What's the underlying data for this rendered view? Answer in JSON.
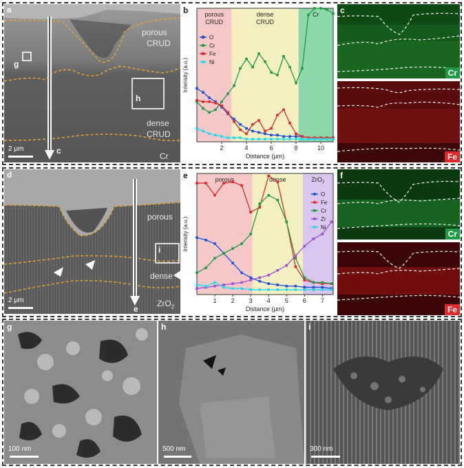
{
  "panels": {
    "a": {
      "letter": "a",
      "labels": {
        "porous": "porous",
        "crud1": "CRUD",
        "dense": "dense",
        "crud2": "CRUD",
        "cr": "Cr",
        "g": "g",
        "h": "h",
        "c": "c"
      },
      "scale": "2 μm"
    },
    "b": {
      "letter": "b",
      "regions": {
        "porous": "porous",
        "porous2": "CRUD",
        "dense": "dense",
        "dense2": "CRUD",
        "cr": "Cr"
      }
    },
    "c": {
      "letter": "c",
      "top_element": "Cr",
      "bottom_element": "Fe"
    },
    "d": {
      "letter": "d",
      "labels": {
        "porous": "porous",
        "dense": "dense",
        "zro2": "ZrO",
        "zro2_sub": "2",
        "i": "i",
        "e": "e"
      },
      "scale": "2 μm"
    },
    "e": {
      "letter": "e",
      "regions": {
        "porous": "porous",
        "dense": "dense",
        "zro2": "ZrO",
        "zro2_sub": "2"
      }
    },
    "f": {
      "letter": "f",
      "top_element": "Cr",
      "bottom_element": "Fe"
    },
    "g": {
      "letter": "g",
      "scale": "100 nm"
    },
    "h": {
      "letter": "h",
      "scale": "500 nm"
    },
    "i": {
      "letter": "i",
      "scale": "300 nm"
    }
  },
  "colors": {
    "O": "#1f4fd6",
    "Cr": "#1f9a46",
    "Fe": "#e0282a",
    "Ni": "#27d8ea",
    "Zr": "#9a4fd6",
    "porous_bg": "#f6c8c8",
    "dense_bg": "#f5f0c2",
    "cr_bg": "#8ed7a8",
    "zro2_bg": "#d9c5ee"
  },
  "chart_data": [
    {
      "type": "line",
      "panel": "b",
      "xlabel": "Distance (μm)",
      "ylabel": "Intensity (a.u.)",
      "xlim": [
        0,
        11
      ],
      "ylim": [
        0,
        1
      ],
      "xticks": [
        2,
        4,
        6,
        8,
        10
      ],
      "regions": [
        {
          "name": "porous CRUD",
          "from": 0,
          "to": 2.8
        },
        {
          "name": "dense CRUD",
          "from": 2.8,
          "to": 8.2
        },
        {
          "name": "Cr",
          "from": 8.2,
          "to": 11
        }
      ],
      "series": [
        {
          "name": "O",
          "x": [
            0,
            0.5,
            1,
            1.5,
            2,
            2.5,
            3,
            3.5,
            4,
            4.5,
            5,
            5.5,
            6,
            6.5,
            7,
            7.5,
            8,
            8.5,
            9,
            9.5,
            10,
            10.5,
            11
          ],
          "values": [
            0.4,
            0.37,
            0.33,
            0.3,
            0.26,
            0.21,
            0.17,
            0.13,
            0.1,
            0.08,
            0.07,
            0.06,
            0.05,
            0.05,
            0.04,
            0.04,
            0.04,
            0.04,
            0.03,
            0.03,
            0.03,
            0.03,
            0.03
          ]
        },
        {
          "name": "Cr",
          "x": [
            0,
            0.5,
            1,
            1.5,
            2,
            2.5,
            3,
            3.5,
            4,
            4.5,
            5,
            5.5,
            6,
            6.5,
            7,
            7.5,
            8,
            8.5,
            9,
            9.5,
            10,
            10.5,
            11
          ],
          "values": [
            0.3,
            0.25,
            0.22,
            0.24,
            0.3,
            0.36,
            0.42,
            0.55,
            0.62,
            0.56,
            0.66,
            0.6,
            0.52,
            0.5,
            0.64,
            0.56,
            0.44,
            0.55,
            0.95,
            1.0,
            1.0,
            0.99,
            0.96
          ]
        },
        {
          "name": "Fe",
          "x": [
            0,
            0.5,
            1,
            1.5,
            2,
            2.5,
            3,
            3.5,
            4,
            4.5,
            5,
            5.5,
            6,
            6.5,
            7,
            7.5,
            8,
            8.5,
            9,
            9.5,
            10,
            10.5,
            11
          ],
          "values": [
            0.31,
            0.3,
            0.3,
            0.29,
            0.27,
            0.22,
            0.15,
            0.09,
            0.06,
            0.13,
            0.16,
            0.08,
            0.1,
            0.2,
            0.24,
            0.14,
            0.06,
            0.04,
            0.03,
            0.03,
            0.03,
            0.03,
            0.03
          ]
        },
        {
          "name": "Ni",
          "x": [
            0,
            0.5,
            1,
            1.5,
            2,
            2.5,
            3,
            3.5,
            4,
            4.5,
            5,
            5.5,
            6,
            6.5,
            7,
            7.5,
            8,
            8.5,
            9,
            9.5,
            10,
            10.5,
            11
          ],
          "values": [
            0.1,
            0.08,
            0.06,
            0.05,
            0.04,
            0.03,
            0.03,
            0.03,
            0.02,
            0.02,
            0.02,
            0.02,
            0.02,
            0.02,
            0.02,
            0.02,
            0.02,
            0.02,
            0.02,
            0.02,
            0.02,
            0.02,
            0.02
          ]
        }
      ]
    },
    {
      "type": "line",
      "panel": "e",
      "xlabel": "Distance (μm)",
      "ylabel": "Intensity (a.u.)",
      "xlim": [
        0,
        7.6
      ],
      "ylim": [
        0,
        1
      ],
      "xticks": [
        1,
        2,
        3,
        4,
        5,
        6,
        7
      ],
      "regions": [
        {
          "name": "porous",
          "from": 0,
          "to": 3.1
        },
        {
          "name": "dense",
          "from": 3.1,
          "to": 5.9
        },
        {
          "name": "ZrO2",
          "from": 5.9,
          "to": 7.6
        }
      ],
      "series": [
        {
          "name": "O",
          "x": [
            0,
            0.5,
            1,
            1.5,
            2,
            2.5,
            3,
            3.5,
            4,
            4.5,
            5,
            5.5,
            6,
            6.5,
            7,
            7.5
          ],
          "values": [
            0.47,
            0.45,
            0.42,
            0.34,
            0.26,
            0.18,
            0.14,
            0.11,
            0.09,
            0.08,
            0.07,
            0.07,
            0.06,
            0.06,
            0.06,
            0.05
          ]
        },
        {
          "name": "Fe",
          "x": [
            0,
            0.5,
            1,
            1.5,
            2,
            2.5,
            3,
            3.5,
            4,
            4.5,
            5,
            5.5,
            6,
            6.5,
            7,
            7.5
          ],
          "values": [
            0.92,
            0.92,
            0.82,
            0.92,
            0.93,
            0.9,
            0.68,
            0.72,
            0.98,
            0.93,
            0.6,
            0.23,
            0.12,
            0.1,
            0.09,
            0.09
          ]
        },
        {
          "name": "Cr",
          "x": [
            0,
            0.5,
            1,
            1.5,
            2,
            2.5,
            3,
            3.5,
            4,
            4.5,
            5,
            5.5,
            6,
            6.5,
            7,
            7.5
          ],
          "values": [
            0.18,
            0.22,
            0.3,
            0.34,
            0.38,
            0.42,
            0.5,
            0.75,
            0.82,
            0.78,
            0.6,
            0.3,
            0.14,
            0.1,
            0.1,
            0.09
          ]
        },
        {
          "name": "Zr",
          "x": [
            0,
            0.5,
            1,
            1.5,
            2,
            2.5,
            3,
            3.5,
            4,
            4.5,
            5,
            5.5,
            6,
            6.5,
            7,
            7.5
          ],
          "values": [
            0.05,
            0.06,
            0.07,
            0.08,
            0.09,
            0.1,
            0.12,
            0.14,
            0.16,
            0.2,
            0.24,
            0.32,
            0.4,
            0.46,
            0.5,
            0.6
          ]
        },
        {
          "name": "Ni",
          "x": [
            0,
            0.5,
            1,
            1.5,
            2,
            2.5,
            3,
            3.5,
            4,
            4.5,
            5,
            5.5,
            6,
            6.5,
            7,
            7.5
          ],
          "values": [
            0.08,
            0.07,
            0.1,
            0.06,
            0.05,
            0.05,
            0.04,
            0.04,
            0.04,
            0.04,
            0.04,
            0.04,
            0.04,
            0.04,
            0.04,
            0.04
          ]
        }
      ]
    }
  ]
}
